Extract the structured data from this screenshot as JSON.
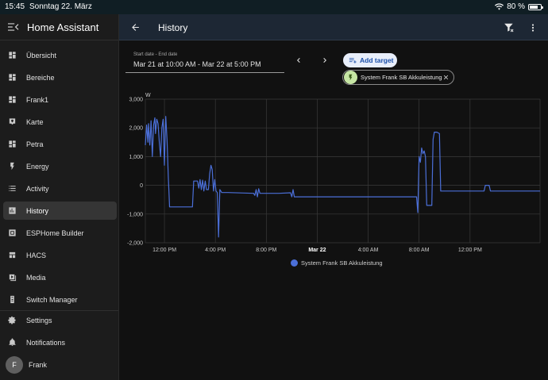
{
  "status_bar": {
    "time": "15:45",
    "date": "Sonntag 22. März",
    "battery": "80 %",
    "battery_level": 0.8
  },
  "sidebar": {
    "title": "Home Assistant",
    "items": [
      {
        "label": "Übersicht",
        "icon": "dashboard-icon"
      },
      {
        "label": "Bereiche",
        "icon": "dashboard-icon"
      },
      {
        "label": "Frank1",
        "icon": "dashboard-icon"
      },
      {
        "label": "Karte",
        "icon": "map-icon"
      },
      {
        "label": "Petra",
        "icon": "dashboard-icon"
      },
      {
        "label": "Energy",
        "icon": "lightning-icon"
      },
      {
        "label": "Activity",
        "icon": "list-icon"
      },
      {
        "label": "History",
        "icon": "chart-bar-icon",
        "active": true
      },
      {
        "label": "ESPHome Builder",
        "icon": "esphome-icon"
      },
      {
        "label": "HACS",
        "icon": "hacs-icon"
      },
      {
        "label": "Media",
        "icon": "media-icon"
      },
      {
        "label": "Switch Manager",
        "icon": "remote-icon"
      }
    ],
    "settings": "Settings",
    "notifications": "Notifications",
    "user": {
      "name": "Frank",
      "initial": "F"
    }
  },
  "header": {
    "title": "History"
  },
  "date_picker": {
    "label": "Start date - End date",
    "value": "Mar 21 at 10:00 AM - Mar 22 at 5:00 PM"
  },
  "add_target": {
    "label": "Add target"
  },
  "target_chip": {
    "label": "System Frank SB Akkuleistung"
  },
  "colors": {
    "accent": "#4b6fd8",
    "chip_icon_bg": "#c6e6a4",
    "header_bg": "#1d2734"
  },
  "chart_data": {
    "type": "line",
    "ylabel": "W",
    "ylim": [
      -2000,
      3000
    ],
    "y_ticks": [
      "3,000",
      "2,000",
      "1,000",
      "0",
      "-1,000",
      "-2,000"
    ],
    "y_tick_values": [
      3000,
      2000,
      1000,
      0,
      -1000,
      -2000
    ],
    "x_range_hours": [
      10.5,
      41.5
    ],
    "x_ticks": [
      {
        "label": "12:00 PM",
        "hour": 12
      },
      {
        "label": "4:00 PM",
        "hour": 16
      },
      {
        "label": "8:00 PM",
        "hour": 20
      },
      {
        "label": "Mar 22",
        "hour": 24,
        "bold": true
      },
      {
        "label": "4:00 AM",
        "hour": 28
      },
      {
        "label": "8:00 AM",
        "hour": 32
      },
      {
        "label": "12:00 PM",
        "hour": 36
      }
    ],
    "series": [
      {
        "name": "System Frank SB Akkuleistung",
        "points": [
          [
            10.5,
            1400
          ],
          [
            10.6,
            2100
          ],
          [
            10.7,
            1500
          ],
          [
            10.75,
            2150
          ],
          [
            10.85,
            1400
          ],
          [
            10.95,
            2250
          ],
          [
            11.05,
            1000
          ],
          [
            11.15,
            2100
          ],
          [
            11.25,
            2350
          ],
          [
            11.3,
            1800
          ],
          [
            11.4,
            2300
          ],
          [
            11.5,
            2150
          ],
          [
            11.6,
            1500
          ],
          [
            11.7,
            1000
          ],
          [
            11.8,
            2000
          ],
          [
            11.9,
            2300
          ],
          [
            12.0,
            700
          ],
          [
            12.1,
            2400
          ],
          [
            12.2,
            1600
          ],
          [
            12.3,
            300
          ],
          [
            12.35,
            -200
          ],
          [
            12.4,
            -750
          ],
          [
            14.2,
            -750
          ],
          [
            14.3,
            150
          ],
          [
            14.6,
            150
          ],
          [
            14.7,
            -100
          ],
          [
            14.8,
            200
          ],
          [
            14.9,
            -150
          ],
          [
            15.0,
            180
          ],
          [
            15.1,
            -200
          ],
          [
            15.2,
            150
          ],
          [
            15.3,
            -150
          ],
          [
            15.45,
            -150
          ],
          [
            15.55,
            400
          ],
          [
            15.65,
            700
          ],
          [
            15.75,
            550
          ],
          [
            15.85,
            -200
          ],
          [
            15.95,
            200
          ],
          [
            16.05,
            -200
          ],
          [
            16.15,
            -250
          ],
          [
            16.25,
            -1800
          ],
          [
            16.35,
            -150
          ],
          [
            16.5,
            -250
          ],
          [
            17.0,
            -250
          ],
          [
            19.0,
            -280
          ],
          [
            19.1,
            -350
          ],
          [
            19.2,
            -150
          ],
          [
            19.3,
            -400
          ],
          [
            19.4,
            -120
          ],
          [
            19.5,
            -280
          ],
          [
            21.0,
            -280
          ],
          [
            21.9,
            -260
          ],
          [
            22.0,
            -400
          ],
          [
            22.1,
            -150
          ],
          [
            22.2,
            -400
          ],
          [
            22.3,
            -400
          ],
          [
            28.0,
            -400
          ],
          [
            31.8,
            -400
          ],
          [
            31.9,
            -950
          ],
          [
            32.0,
            1000
          ],
          [
            32.1,
            800
          ],
          [
            32.2,
            1300
          ],
          [
            32.3,
            1100
          ],
          [
            32.4,
            1200
          ],
          [
            32.5,
            1000
          ],
          [
            32.6,
            -700
          ],
          [
            33.0,
            -700
          ],
          [
            33.1,
            1600
          ],
          [
            33.2,
            1850
          ],
          [
            33.4,
            1850
          ],
          [
            33.6,
            1800
          ],
          [
            33.7,
            -200
          ],
          [
            37.1,
            -200
          ],
          [
            37.2,
            0
          ],
          [
            37.5,
            0
          ],
          [
            37.6,
            -200
          ],
          [
            41.5,
            -200
          ]
        ]
      }
    ],
    "legend": "bottom-center",
    "grid": true
  }
}
